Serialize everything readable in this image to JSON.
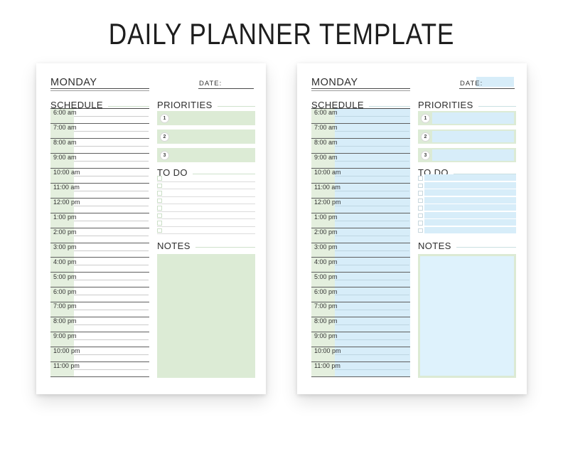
{
  "title": "DAILY PLANNER TEMPLATE",
  "accent_colors": {
    "left_page_green": "#dcebd5",
    "left_page_schedule_column_green": "#e4efde",
    "right_page_blue": "#d7edf9"
  },
  "pages": [
    {
      "variant": "green",
      "day_label": "MONDAY",
      "date_label": "DATE:",
      "schedule": {
        "heading": "SCHEDULE",
        "times": [
          "6:00 am",
          "7:00 am",
          "8:00 am",
          "9:00 am",
          "10:00 am",
          "11:00 am",
          "12:00 pm",
          "1:00 pm",
          "2:00 pm",
          "3:00 pm",
          "4:00 pm",
          "5:00 pm",
          "6:00 pm",
          "7:00 pm",
          "8:00 pm",
          "9:00 pm",
          "10:00 pm",
          "11:00 pm"
        ]
      },
      "priorities": {
        "heading": "PRIORITIES",
        "numbers": [
          "1",
          "2",
          "3"
        ]
      },
      "todo": {
        "heading": "TO DO",
        "row_count": 8
      },
      "notes": {
        "heading": "NOTES"
      }
    },
    {
      "variant": "blue",
      "day_label": "MONDAY",
      "date_label": "DATE:",
      "schedule": {
        "heading": "SCHEDULE",
        "times": [
          "6:00 am",
          "7:00 am",
          "8:00 am",
          "9:00 am",
          "10:00 am",
          "11:00 am",
          "12:00 pm",
          "1:00 pm",
          "2:00 pm",
          "3:00 pm",
          "4:00 pm",
          "5:00 pm",
          "6:00 pm",
          "7:00 pm",
          "8:00 pm",
          "9:00 pm",
          "10:00 pm",
          "11:00 pm"
        ]
      },
      "priorities": {
        "heading": "PRIORITIES",
        "numbers": [
          "1",
          "2",
          "3"
        ]
      },
      "todo": {
        "heading": "TO DO",
        "row_count": 8
      },
      "notes": {
        "heading": "NOTES"
      }
    }
  ]
}
